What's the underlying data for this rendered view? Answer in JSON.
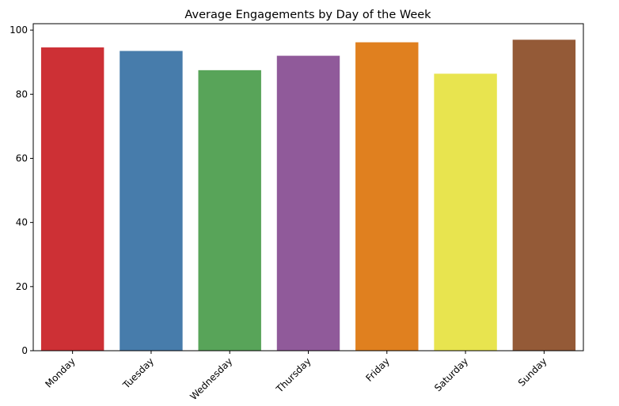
{
  "chart_data": {
    "type": "bar",
    "title": "Average Engagements by Day of the Week",
    "xlabel": "",
    "ylabel": "",
    "categories": [
      "Monday",
      "Tuesday",
      "Wednesday",
      "Thursday",
      "Friday",
      "Saturday",
      "Sunday"
    ],
    "values": [
      94.6,
      93.5,
      87.5,
      92.0,
      96.2,
      86.4,
      97.0
    ],
    "colors": [
      "#cd3035",
      "#477cab",
      "#58a459",
      "#905a9a",
      "#e0801f",
      "#e8e44f",
      "#945a37"
    ],
    "ylim": [
      0,
      102
    ],
    "yticks": [
      0,
      20,
      40,
      60,
      80,
      100
    ],
    "grid": false,
    "legend": "none"
  }
}
